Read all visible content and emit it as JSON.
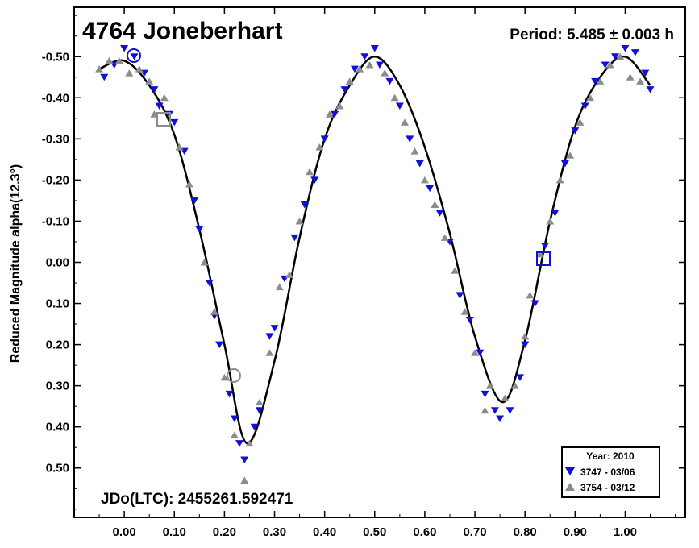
{
  "chart_data": {
    "type": "scatter",
    "title": "4764 Joneberhart",
    "period_label": "Period: 5.485 ± 0.003 h",
    "epoch_label": "JDo(LTC): 2455261.592471",
    "ylabel": "Reduced Magnitude alpha(12.3°)",
    "xlabel": "",
    "xlim": [
      -0.1,
      1.12
    ],
    "ylim": [
      -0.62,
      0.62
    ],
    "y_inverted": true,
    "x_ticks": [
      0.0,
      0.1,
      0.2,
      0.3,
      0.4,
      0.5,
      0.6,
      0.7,
      0.8,
      0.9,
      1.0
    ],
    "x_tick_labels": [
      "0.00",
      "0.10",
      "0.20",
      "0.30",
      "0.40",
      "0.50",
      "0.60",
      "0.70",
      "0.80",
      "0.90",
      "1.00"
    ],
    "y_ticks": [
      -0.5,
      -0.4,
      -0.3,
      -0.2,
      -0.1,
      0.0,
      0.1,
      0.2,
      0.3,
      0.4,
      0.5
    ],
    "y_tick_labels": [
      "-0.50",
      "-0.40",
      "-0.30",
      "-0.20",
      "-0.10",
      "0.00",
      "0.10",
      "0.20",
      "0.30",
      "0.40",
      "0.50"
    ],
    "legend": {
      "title": "Year: 2010",
      "entries": [
        {
          "label": "3747 - 03/06",
          "marker": "triangle-down",
          "color": "#1010d8"
        },
        {
          "label": "3754 - 03/12",
          "marker": "triangle-up",
          "color": "#8c8c8c"
        }
      ]
    },
    "fit_curve": {
      "description": "Fourier fit",
      "color": "#000000",
      "x": [
        -0.05,
        0.0,
        0.05,
        0.1,
        0.15,
        0.2,
        0.245,
        0.3,
        0.35,
        0.4,
        0.45,
        0.5,
        0.55,
        0.6,
        0.65,
        0.7,
        0.755,
        0.8,
        0.85,
        0.9,
        0.95,
        1.0,
        1.05
      ],
      "y": [
        -0.47,
        -0.49,
        -0.43,
        -0.31,
        -0.08,
        0.2,
        0.44,
        0.24,
        -0.06,
        -0.3,
        -0.43,
        -0.5,
        -0.43,
        -0.28,
        -0.07,
        0.18,
        0.34,
        0.19,
        -0.1,
        -0.33,
        -0.45,
        -0.5,
        -0.43
      ]
    },
    "series": [
      {
        "name": "3747 - 03/06",
        "marker": "triangle-down",
        "color": "#1010d8",
        "x": [
          -0.04,
          -0.02,
          0.0,
          0.02,
          0.04,
          0.06,
          0.07,
          0.09,
          0.1,
          0.12,
          0.14,
          0.15,
          0.17,
          0.18,
          0.19,
          0.21,
          0.22,
          0.23,
          0.24,
          0.26,
          0.27,
          0.29,
          0.3,
          0.32,
          0.34,
          0.36,
          0.38,
          0.4,
          0.42,
          0.44,
          0.46,
          0.48,
          0.5,
          0.51,
          0.53,
          0.55,
          0.57,
          0.59,
          0.61,
          0.63,
          0.65,
          0.67,
          0.69,
          0.71,
          0.72,
          0.74,
          0.75,
          0.77,
          0.79,
          0.8,
          0.82,
          0.84,
          0.86,
          0.88,
          0.9,
          0.92,
          0.94,
          0.96,
          0.98,
          1.0,
          1.02,
          1.04,
          1.05
        ],
        "y": [
          -0.45,
          -0.48,
          -0.52,
          -0.5,
          -0.46,
          -0.42,
          -0.38,
          -0.36,
          -0.34,
          -0.27,
          -0.15,
          -0.08,
          0.05,
          0.13,
          0.2,
          0.32,
          0.38,
          0.44,
          0.48,
          0.4,
          0.36,
          0.18,
          0.16,
          0.04,
          -0.06,
          -0.14,
          -0.2,
          -0.3,
          -0.36,
          -0.42,
          -0.47,
          -0.5,
          -0.52,
          -0.48,
          -0.44,
          -0.38,
          -0.3,
          -0.24,
          -0.18,
          -0.12,
          -0.05,
          0.08,
          0.14,
          0.22,
          0.32,
          0.36,
          0.38,
          0.36,
          0.28,
          0.2,
          0.1,
          -0.04,
          -0.12,
          -0.24,
          -0.32,
          -0.38,
          -0.44,
          -0.48,
          -0.5,
          -0.52,
          -0.51,
          -0.46,
          -0.42
        ]
      },
      {
        "name": "3754 - 03/12",
        "marker": "triangle-up",
        "color": "#8c8c8c",
        "x": [
          -0.05,
          -0.03,
          -0.01,
          0.01,
          0.03,
          0.05,
          0.06,
          0.08,
          0.11,
          0.13,
          0.16,
          0.18,
          0.2,
          0.22,
          0.24,
          0.25,
          0.27,
          0.29,
          0.31,
          0.33,
          0.35,
          0.37,
          0.39,
          0.41,
          0.43,
          0.45,
          0.47,
          0.49,
          0.52,
          0.54,
          0.56,
          0.58,
          0.6,
          0.62,
          0.64,
          0.66,
          0.68,
          0.7,
          0.72,
          0.73,
          0.76,
          0.78,
          0.8,
          0.81,
          0.83,
          0.85,
          0.87,
          0.89,
          0.91,
          0.93,
          0.95,
          0.97,
          0.99,
          1.01,
          1.03
        ],
        "y": [
          -0.47,
          -0.49,
          -0.49,
          -0.46,
          -0.47,
          -0.44,
          -0.36,
          -0.4,
          -0.28,
          -0.19,
          0.0,
          0.12,
          0.28,
          0.42,
          0.53,
          0.44,
          0.34,
          0.22,
          0.06,
          0.03,
          -0.1,
          -0.22,
          -0.28,
          -0.36,
          -0.38,
          -0.44,
          -0.47,
          -0.48,
          -0.46,
          -0.4,
          -0.34,
          -0.27,
          -0.2,
          -0.14,
          -0.06,
          0.02,
          0.12,
          0.22,
          0.36,
          0.3,
          0.33,
          0.3,
          0.18,
          0.08,
          -0.02,
          -0.1,
          -0.2,
          -0.26,
          -0.34,
          -0.4,
          -0.44,
          -0.48,
          -0.5,
          -0.45,
          -0.44
        ]
      }
    ]
  }
}
